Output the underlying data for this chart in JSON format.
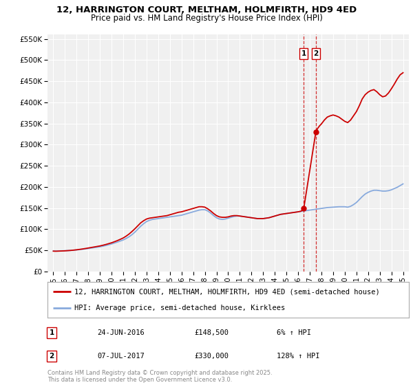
{
  "title": "12, HARRINGTON COURT, MELTHAM, HOLMFIRTH, HD9 4ED",
  "subtitle": "Price paid vs. HM Land Registry's House Price Index (HPI)",
  "legend_line1": "12, HARRINGTON COURT, MELTHAM, HOLMFIRTH, HD9 4ED (semi-detached house)",
  "legend_line2": "HPI: Average price, semi-detached house, Kirklees",
  "price_color": "#cc0000",
  "hpi_color": "#88aadd",
  "transaction1_date": "24-JUN-2016",
  "transaction1_price": 148500,
  "transaction1_hpi": "6% ↑ HPI",
  "transaction2_date": "07-JUL-2017",
  "transaction2_price": 330000,
  "transaction2_hpi": "128% ↑ HPI",
  "transaction1_x": 2016.48,
  "transaction2_x": 2017.52,
  "ylim_min": 0,
  "ylim_max": 560000,
  "xlim_min": 1994.5,
  "xlim_max": 2025.5,
  "yticks": [
    0,
    50000,
    100000,
    150000,
    200000,
    250000,
    300000,
    350000,
    400000,
    450000,
    500000,
    550000
  ],
  "ytick_labels": [
    "£0",
    "£50K",
    "£100K",
    "£150K",
    "£200K",
    "£250K",
    "£300K",
    "£350K",
    "£400K",
    "£450K",
    "£500K",
    "£550K"
  ],
  "xticks": [
    1995,
    1996,
    1997,
    1998,
    1999,
    2000,
    2001,
    2002,
    2003,
    2004,
    2005,
    2006,
    2007,
    2008,
    2009,
    2010,
    2011,
    2012,
    2013,
    2014,
    2015,
    2016,
    2017,
    2018,
    2019,
    2020,
    2021,
    2022,
    2023,
    2024,
    2025
  ],
  "copyright_text": "Contains HM Land Registry data © Crown copyright and database right 2025.\nThis data is licensed under the Open Government Licence v3.0.",
  "background_color": "#f0f0f0",
  "grid_color": "#ffffff",
  "hpi_data": [
    [
      1995.0,
      48500
    ],
    [
      1995.08,
      48400
    ],
    [
      1995.17,
      48300
    ],
    [
      1995.25,
      48300
    ],
    [
      1995.33,
      48400
    ],
    [
      1995.42,
      48500
    ],
    [
      1995.5,
      48600
    ],
    [
      1995.58,
      48600
    ],
    [
      1995.67,
      48700
    ],
    [
      1995.75,
      48700
    ],
    [
      1995.83,
      48800
    ],
    [
      1995.92,
      48900
    ],
    [
      1996.0,
      49000
    ],
    [
      1996.25,
      49300
    ],
    [
      1996.5,
      49700
    ],
    [
      1996.75,
      50200
    ],
    [
      1997.0,
      50800
    ],
    [
      1997.25,
      51500
    ],
    [
      1997.5,
      52300
    ],
    [
      1997.75,
      53200
    ],
    [
      1998.0,
      54200
    ],
    [
      1998.25,
      55200
    ],
    [
      1998.5,
      56200
    ],
    [
      1998.75,
      57200
    ],
    [
      1999.0,
      58300
    ],
    [
      1999.25,
      59700
    ],
    [
      1999.5,
      61300
    ],
    [
      1999.75,
      63100
    ],
    [
      2000.0,
      65000
    ],
    [
      2000.25,
      67200
    ],
    [
      2000.5,
      69500
    ],
    [
      2000.75,
      72000
    ],
    [
      2001.0,
      74500
    ],
    [
      2001.25,
      78000
    ],
    [
      2001.5,
      82000
    ],
    [
      2001.75,
      87000
    ],
    [
      2002.0,
      93000
    ],
    [
      2002.25,
      100000
    ],
    [
      2002.5,
      107000
    ],
    [
      2002.75,
      113000
    ],
    [
      2003.0,
      118000
    ],
    [
      2003.25,
      121000
    ],
    [
      2003.5,
      123000
    ],
    [
      2003.75,
      124000
    ],
    [
      2004.0,
      125000
    ],
    [
      2004.25,
      126000
    ],
    [
      2004.5,
      127000
    ],
    [
      2004.75,
      128000
    ],
    [
      2005.0,
      129000
    ],
    [
      2005.25,
      130000
    ],
    [
      2005.5,
      131000
    ],
    [
      2005.75,
      132000
    ],
    [
      2006.0,
      133000
    ],
    [
      2006.25,
      135000
    ],
    [
      2006.5,
      137000
    ],
    [
      2006.75,
      139000
    ],
    [
      2007.0,
      141000
    ],
    [
      2007.25,
      143000
    ],
    [
      2007.5,
      145000
    ],
    [
      2007.75,
      146000
    ],
    [
      2008.0,
      146000
    ],
    [
      2008.25,
      143000
    ],
    [
      2008.5,
      138000
    ],
    [
      2008.75,
      132000
    ],
    [
      2009.0,
      127000
    ],
    [
      2009.25,
      124000
    ],
    [
      2009.5,
      123000
    ],
    [
      2009.75,
      124000
    ],
    [
      2010.0,
      126000
    ],
    [
      2010.25,
      128000
    ],
    [
      2010.5,
      130000
    ],
    [
      2010.75,
      131000
    ],
    [
      2011.0,
      131000
    ],
    [
      2011.25,
      130000
    ],
    [
      2011.5,
      129000
    ],
    [
      2011.75,
      128000
    ],
    [
      2012.0,
      127000
    ],
    [
      2012.25,
      126000
    ],
    [
      2012.5,
      125000
    ],
    [
      2012.75,
      125000
    ],
    [
      2013.0,
      125000
    ],
    [
      2013.25,
      126000
    ],
    [
      2013.5,
      127000
    ],
    [
      2013.75,
      129000
    ],
    [
      2014.0,
      131000
    ],
    [
      2014.25,
      133000
    ],
    [
      2014.5,
      135000
    ],
    [
      2014.75,
      136000
    ],
    [
      2015.0,
      137000
    ],
    [
      2015.25,
      138000
    ],
    [
      2015.5,
      139000
    ],
    [
      2015.75,
      140000
    ],
    [
      2016.0,
      141000
    ],
    [
      2016.25,
      142000
    ],
    [
      2016.5,
      143000
    ],
    [
      2016.75,
      144000
    ],
    [
      2017.0,
      145000
    ],
    [
      2017.25,
      146000
    ],
    [
      2017.5,
      147000
    ],
    [
      2017.75,
      148000
    ],
    [
      2018.0,
      149000
    ],
    [
      2018.25,
      150000
    ],
    [
      2018.5,
      151000
    ],
    [
      2018.75,
      151500
    ],
    [
      2019.0,
      152000
    ],
    [
      2019.25,
      152500
    ],
    [
      2019.5,
      153000
    ],
    [
      2019.75,
      153000
    ],
    [
      2020.0,
      153000
    ],
    [
      2020.25,
      152000
    ],
    [
      2020.5,
      154000
    ],
    [
      2020.75,
      158000
    ],
    [
      2021.0,
      163000
    ],
    [
      2021.25,
      170000
    ],
    [
      2021.5,
      177000
    ],
    [
      2021.75,
      183000
    ],
    [
      2022.0,
      187000
    ],
    [
      2022.25,
      190000
    ],
    [
      2022.5,
      192000
    ],
    [
      2022.75,
      192000
    ],
    [
      2023.0,
      191000
    ],
    [
      2023.25,
      190000
    ],
    [
      2023.5,
      190000
    ],
    [
      2023.75,
      191000
    ],
    [
      2024.0,
      193000
    ],
    [
      2024.25,
      196000
    ],
    [
      2024.5,
      199000
    ],
    [
      2024.75,
      203000
    ],
    [
      2025.0,
      207000
    ]
  ],
  "price_data_pre": [
    [
      1995.0,
      48000
    ],
    [
      1995.08,
      47900
    ],
    [
      1995.17,
      47800
    ],
    [
      1995.25,
      47800
    ],
    [
      1995.33,
      47900
    ],
    [
      1995.42,
      48000
    ],
    [
      1995.5,
      48100
    ],
    [
      1995.58,
      48200
    ],
    [
      1995.67,
      48300
    ],
    [
      1995.75,
      48400
    ],
    [
      1995.83,
      48500
    ],
    [
      1995.92,
      48600
    ],
    [
      1996.0,
      48700
    ],
    [
      1996.25,
      49200
    ],
    [
      1996.5,
      49700
    ],
    [
      1996.75,
      50400
    ],
    [
      1997.0,
      51200
    ],
    [
      1997.25,
      52100
    ],
    [
      1997.5,
      53100
    ],
    [
      1997.75,
      54200
    ],
    [
      1998.0,
      55400
    ],
    [
      1998.25,
      56600
    ],
    [
      1998.5,
      57800
    ],
    [
      1998.75,
      59000
    ],
    [
      1999.0,
      60300
    ],
    [
      1999.25,
      61900
    ],
    [
      1999.5,
      63700
    ],
    [
      1999.75,
      65700
    ],
    [
      2000.0,
      67800
    ],
    [
      2000.25,
      70300
    ],
    [
      2000.5,
      73000
    ],
    [
      2000.75,
      76000
    ],
    [
      2001.0,
      79200
    ],
    [
      2001.25,
      83500
    ],
    [
      2001.5,
      88500
    ],
    [
      2001.75,
      94500
    ],
    [
      2002.0,
      101000
    ],
    [
      2002.25,
      108000
    ],
    [
      2002.5,
      115000
    ],
    [
      2002.75,
      120000
    ],
    [
      2003.0,
      124000
    ],
    [
      2003.25,
      126000
    ],
    [
      2003.5,
      127000
    ],
    [
      2003.75,
      128000
    ],
    [
      2004.0,
      129000
    ],
    [
      2004.25,
      130000
    ],
    [
      2004.5,
      131000
    ],
    [
      2004.75,
      132000
    ],
    [
      2005.0,
      134000
    ],
    [
      2005.25,
      136000
    ],
    [
      2005.5,
      138000
    ],
    [
      2005.75,
      140000
    ],
    [
      2006.0,
      141000
    ],
    [
      2006.25,
      143000
    ],
    [
      2006.5,
      145000
    ],
    [
      2006.75,
      147000
    ],
    [
      2007.0,
      149000
    ],
    [
      2007.25,
      151000
    ],
    [
      2007.5,
      153000
    ],
    [
      2007.75,
      153000
    ],
    [
      2008.0,
      152000
    ],
    [
      2008.25,
      148000
    ],
    [
      2008.5,
      143000
    ],
    [
      2008.75,
      137000
    ],
    [
      2009.0,
      132000
    ],
    [
      2009.25,
      129000
    ],
    [
      2009.5,
      128000
    ],
    [
      2009.75,
      128000
    ],
    [
      2010.0,
      129000
    ],
    [
      2010.25,
      131000
    ],
    [
      2010.5,
      132000
    ],
    [
      2010.75,
      132000
    ],
    [
      2011.0,
      131000
    ],
    [
      2011.25,
      130000
    ],
    [
      2011.5,
      129000
    ],
    [
      2011.75,
      128000
    ],
    [
      2012.0,
      127000
    ],
    [
      2012.25,
      126000
    ],
    [
      2012.5,
      125000
    ],
    [
      2012.75,
      125000
    ],
    [
      2013.0,
      125000
    ],
    [
      2013.25,
      126000
    ],
    [
      2013.5,
      127000
    ],
    [
      2013.75,
      129000
    ],
    [
      2014.0,
      131000
    ],
    [
      2014.25,
      133000
    ],
    [
      2014.5,
      135000
    ],
    [
      2014.75,
      136000
    ],
    [
      2015.0,
      137000
    ],
    [
      2015.25,
      138000
    ],
    [
      2015.5,
      139000
    ],
    [
      2015.75,
      140000
    ],
    [
      2016.0,
      141000
    ],
    [
      2016.25,
      142500
    ],
    [
      2016.48,
      148500
    ]
  ],
  "price_data_post": [
    [
      2017.52,
      330000
    ],
    [
      2017.67,
      338000
    ],
    [
      2017.83,
      344000
    ],
    [
      2018.0,
      349000
    ],
    [
      2018.25,
      358000
    ],
    [
      2018.5,
      365000
    ],
    [
      2018.75,
      368000
    ],
    [
      2019.0,
      370000
    ],
    [
      2019.25,
      368000
    ],
    [
      2019.5,
      365000
    ],
    [
      2019.75,
      360000
    ],
    [
      2020.0,
      355000
    ],
    [
      2020.25,
      352000
    ],
    [
      2020.5,
      358000
    ],
    [
      2020.75,
      368000
    ],
    [
      2021.0,
      378000
    ],
    [
      2021.25,
      392000
    ],
    [
      2021.5,
      408000
    ],
    [
      2021.75,
      418000
    ],
    [
      2022.0,
      424000
    ],
    [
      2022.25,
      428000
    ],
    [
      2022.5,
      430000
    ],
    [
      2022.75,
      425000
    ],
    [
      2023.0,
      418000
    ],
    [
      2023.25,
      413000
    ],
    [
      2023.5,
      415000
    ],
    [
      2023.75,
      422000
    ],
    [
      2024.0,
      432000
    ],
    [
      2024.25,
      443000
    ],
    [
      2024.5,
      455000
    ],
    [
      2024.75,
      465000
    ],
    [
      2025.0,
      470000
    ]
  ],
  "price_data_between": [
    [
      2016.48,
      148500
    ],
    [
      2017.52,
      330000
    ]
  ]
}
